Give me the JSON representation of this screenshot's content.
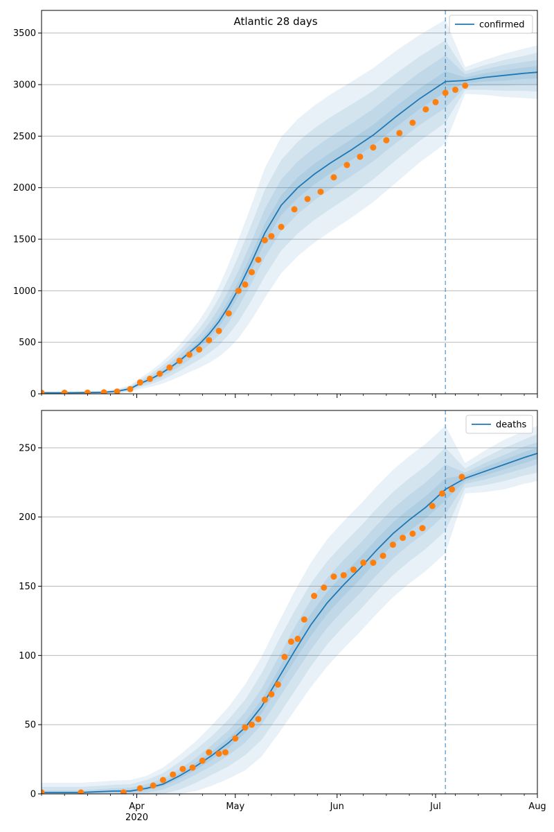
{
  "figure": {
    "title": "Atlantic 28 days",
    "x_tick_labels": [
      "Apr",
      "May",
      "Jun",
      "Jul",
      "Aug"
    ],
    "x_year_label": "2020"
  },
  "colors": {
    "line": "#1f77b4",
    "band": "#1f77b4",
    "points": "#ff7f0e",
    "grid": "#b0b0b0"
  },
  "chart_data": [
    {
      "type": "line",
      "legend": "confirmed",
      "legend_position": "top-right",
      "grid": "horizontal",
      "x_range": [
        "2020-03-03",
        "2020-08-01"
      ],
      "forecast_start": "2020-07-04",
      "ylim": [
        0,
        3720
      ],
      "y_ticks": [
        0,
        500,
        1000,
        1500,
        2000,
        2500,
        3000,
        3500
      ],
      "observed": {
        "x": [
          "2020-03-03",
          "2020-03-10",
          "2020-03-17",
          "2020-03-22",
          "2020-03-26",
          "2020-03-30",
          "2020-04-02",
          "2020-04-05",
          "2020-04-08",
          "2020-04-11",
          "2020-04-14",
          "2020-04-17",
          "2020-04-20",
          "2020-04-23",
          "2020-04-26",
          "2020-04-29",
          "2020-05-02",
          "2020-05-04",
          "2020-05-06",
          "2020-05-08",
          "2020-05-10",
          "2020-05-12",
          "2020-05-15",
          "2020-05-19",
          "2020-05-23",
          "2020-05-27",
          "2020-05-31",
          "2020-06-04",
          "2020-06-08",
          "2020-06-12",
          "2020-06-16",
          "2020-06-20",
          "2020-06-24",
          "2020-06-28",
          "2020-07-01",
          "2020-07-04",
          "2020-07-07",
          "2020-07-10"
        ],
        "y": [
          10,
          10,
          11,
          14,
          22,
          45,
          110,
          145,
          195,
          255,
          320,
          380,
          430,
          520,
          610,
          780,
          1000,
          1060,
          1180,
          1300,
          1490,
          1530,
          1620,
          1790,
          1890,
          1960,
          2100,
          2220,
          2300,
          2390,
          2460,
          2530,
          2630,
          2760,
          2830,
          2920,
          2950,
          2990
        ]
      },
      "model": {
        "x": [
          "2020-03-03",
          "2020-03-10",
          "2020-03-17",
          "2020-03-22",
          "2020-03-26",
          "2020-03-30",
          "2020-04-02",
          "2020-04-05",
          "2020-04-08",
          "2020-04-11",
          "2020-04-14",
          "2020-04-17",
          "2020-04-20",
          "2020-04-23",
          "2020-04-26",
          "2020-04-29",
          "2020-05-02",
          "2020-05-06",
          "2020-05-10",
          "2020-05-15",
          "2020-05-20",
          "2020-05-25",
          "2020-05-30",
          "2020-06-05",
          "2020-06-12",
          "2020-06-19",
          "2020-06-26",
          "2020-07-04",
          "2020-07-10",
          "2020-07-16",
          "2020-07-22",
          "2020-07-28",
          "2020-08-01"
        ],
        "y": [
          10,
          10,
          12,
          15,
          25,
          50,
          100,
          140,
          190,
          250,
          320,
          400,
          480,
          580,
          700,
          850,
          1020,
          1280,
          1560,
          1830,
          2000,
          2130,
          2240,
          2360,
          2510,
          2690,
          2860,
          3030,
          3040,
          3070,
          3090,
          3110,
          3120
        ],
        "band_halfwidth": [
          [
            2,
            2,
            2,
            3,
            3,
            5,
            8,
            10,
            12,
            15,
            20,
            25,
            30,
            40,
            50,
            60,
            70,
            80,
            90,
            95,
            100,
            100,
            100,
            100,
            100,
            100,
            100,
            100,
            30,
            40,
            50,
            55,
            60
          ],
          [
            4,
            4,
            5,
            6,
            8,
            12,
            20,
            28,
            36,
            45,
            55,
            70,
            85,
            105,
            130,
            155,
            175,
            205,
            235,
            250,
            255,
            255,
            255,
            255,
            255,
            255,
            255,
            255,
            60,
            80,
            100,
            110,
            120
          ],
          [
            8,
            8,
            9,
            10,
            14,
            22,
            35,
            50,
            65,
            80,
            100,
            125,
            150,
            185,
            230,
            275,
            320,
            370,
            420,
            440,
            445,
            445,
            445,
            440,
            430,
            420,
            410,
            400,
            90,
            120,
            150,
            170,
            190
          ],
          [
            12,
            12,
            14,
            16,
            22,
            35,
            55,
            75,
            100,
            125,
            155,
            190,
            230,
            280,
            340,
            410,
            480,
            560,
            630,
            660,
            665,
            665,
            665,
            660,
            650,
            640,
            620,
            600,
            130,
            170,
            210,
            240,
            260
          ]
        ]
      }
    },
    {
      "type": "line",
      "legend": "deaths",
      "legend_position": "top-right",
      "grid": "horizontal",
      "x_range": [
        "2020-03-03",
        "2020-08-01"
      ],
      "forecast_start": "2020-07-04",
      "ylim": [
        0,
        277
      ],
      "y_ticks": [
        0,
        50,
        100,
        150,
        200,
        250
      ],
      "observed": {
        "x": [
          "2020-03-03",
          "2020-03-15",
          "2020-03-28",
          "2020-04-02",
          "2020-04-06",
          "2020-04-09",
          "2020-04-12",
          "2020-04-15",
          "2020-04-18",
          "2020-04-21",
          "2020-04-23",
          "2020-04-26",
          "2020-04-28",
          "2020-05-01",
          "2020-05-04",
          "2020-05-06",
          "2020-05-08",
          "2020-05-10",
          "2020-05-12",
          "2020-05-14",
          "2020-05-16",
          "2020-05-18",
          "2020-05-20",
          "2020-05-22",
          "2020-05-25",
          "2020-05-28",
          "2020-05-31",
          "2020-06-03",
          "2020-06-06",
          "2020-06-09",
          "2020-06-12",
          "2020-06-15",
          "2020-06-18",
          "2020-06-21",
          "2020-06-24",
          "2020-06-27",
          "2020-06-30",
          "2020-07-03",
          "2020-07-06",
          "2020-07-09"
        ],
        "y": [
          1,
          1,
          1,
          4,
          6,
          10,
          14,
          18,
          19,
          24,
          30,
          29,
          30,
          40,
          48,
          50,
          54,
          68,
          72,
          79,
          99,
          110,
          112,
          126,
          143,
          149,
          157,
          158,
          162,
          167,
          167,
          172,
          180,
          185,
          188,
          192,
          208,
          217,
          220,
          229
        ]
      },
      "model": {
        "x": [
          "2020-03-03",
          "2020-03-15",
          "2020-03-25",
          "2020-03-30",
          "2020-04-04",
          "2020-04-09",
          "2020-04-14",
          "2020-04-19",
          "2020-04-24",
          "2020-04-29",
          "2020-05-04",
          "2020-05-09",
          "2020-05-14",
          "2020-05-19",
          "2020-05-24",
          "2020-05-29",
          "2020-06-03",
          "2020-06-08",
          "2020-06-13",
          "2020-06-18",
          "2020-06-23",
          "2020-06-28",
          "2020-07-04",
          "2020-07-10",
          "2020-07-16",
          "2020-07-22",
          "2020-07-28",
          "2020-08-01"
        ],
        "y": [
          1,
          1,
          2,
          2,
          4,
          7,
          13,
          20,
          28,
          37,
          48,
          63,
          83,
          103,
          122,
          138,
          151,
          163,
          176,
          188,
          198,
          207,
          220,
          228,
          233,
          238,
          243,
          246
        ],
        "band_halfwidth": [
          [
            0.5,
            0.5,
            0.7,
            1,
            1.2,
            1.5,
            2,
            2.5,
            3,
            3.5,
            4,
            5,
            6,
            7,
            8,
            8,
            8,
            8,
            8,
            8,
            8,
            8,
            8,
            2,
            3,
            3.5,
            4,
            4
          ],
          [
            1.5,
            1.5,
            2,
            2.5,
            3,
            4,
            5,
            6,
            7.5,
            9,
            11,
            13,
            15,
            17,
            18,
            18,
            18,
            18,
            18,
            18,
            18,
            18,
            18,
            4,
            6,
            7,
            8,
            8
          ],
          [
            4,
            4,
            4.5,
            5,
            6,
            8,
            10,
            12,
            14,
            17,
            20,
            24,
            27,
            29,
            30,
            30,
            30,
            30,
            30,
            30,
            30,
            30,
            30,
            7,
            10,
            12,
            13,
            14
          ],
          [
            7,
            7,
            7.5,
            8,
            9,
            12,
            15,
            18,
            22,
            26,
            31,
            36,
            40,
            43,
            45,
            46,
            46,
            46,
            46,
            46,
            46,
            46,
            46,
            11,
            15,
            18,
            19,
            20
          ]
        ]
      }
    }
  ]
}
